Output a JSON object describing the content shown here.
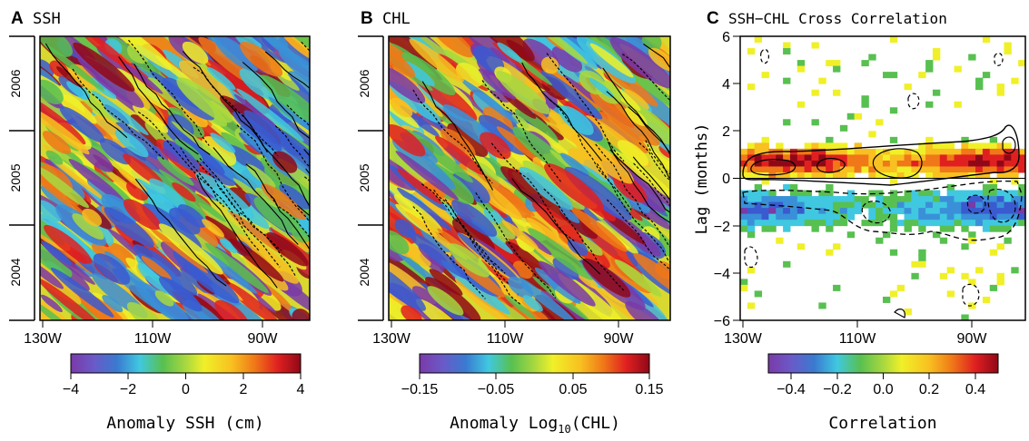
{
  "panels": [
    {
      "letter": "A",
      "title": "SSH",
      "x_ticks": [
        "130W",
        "110W",
        "90W"
      ],
      "year_labels": [
        "2006",
        "2005",
        "2004"
      ],
      "colorbar": {
        "ticks": [
          "−4",
          "−2",
          "0",
          "2",
          "4"
        ],
        "label": "Anomaly SSH (cm)"
      }
    },
    {
      "letter": "B",
      "title": "CHL",
      "x_ticks": [
        "130W",
        "110W",
        "90W"
      ],
      "year_labels": [
        "2006",
        "2005",
        "2004"
      ],
      "colorbar": {
        "ticks": [
          "−0.15",
          "−0.05",
          "0.05",
          "0.15"
        ],
        "label_pre": "Anomaly Log",
        "label_sub": "10",
        "label_post": "(CHL)"
      }
    },
    {
      "letter": "C",
      "title": "SSH−CHL Cross Correlation",
      "x_ticks": [
        "130W",
        "110W",
        "90W"
      ],
      "y_label": "Lag (months)",
      "y_ticks": [
        "6",
        "4",
        "2",
        "0",
        "−2",
        "−4",
        "−6"
      ],
      "colorbar": {
        "ticks": [
          "−0.4",
          "−0.2",
          "0.0",
          "0.2",
          "0.4"
        ],
        "label": "Correlation"
      }
    }
  ],
  "chart_data": [
    {
      "type": "heatmap",
      "title": "SSH",
      "x_axis": {
        "ticks": [
          "130W",
          "110W",
          "90W"
        ],
        "range": [
          130,
          79
        ]
      },
      "y_axis": {
        "ticks": [
          "2004",
          "2005",
          "2006"
        ]
      },
      "color_scale": {
        "range": [
          -4,
          4
        ],
        "unit": "cm",
        "label": "Anomaly SSH (cm)"
      },
      "pattern": "westward-propagating diagonal anomaly bands"
    },
    {
      "type": "heatmap",
      "title": "CHL",
      "x_axis": {
        "ticks": [
          "130W",
          "110W",
          "90W"
        ],
        "range": [
          130,
          79
        ]
      },
      "y_axis": {
        "ticks": [
          "2004",
          "2005",
          "2006"
        ]
      },
      "color_scale": {
        "range": [
          -0.15,
          0.15
        ],
        "label": "Anomaly Log10(CHL)"
      },
      "pattern": "westward-propagating diagonal anomaly bands"
    },
    {
      "type": "heatmap",
      "title": "SSH−CHL Cross Correlation",
      "x_axis": {
        "ticks": [
          "130W",
          "110W",
          "90W"
        ],
        "range": [
          130,
          79
        ]
      },
      "y_axis": {
        "label": "Lag (months)",
        "range": [
          -6,
          6
        ],
        "ticks": [
          6,
          4,
          2,
          0,
          -2,
          -4,
          -6
        ]
      },
      "color_scale": {
        "range": [
          -0.5,
          0.5
        ],
        "ticks": [
          -0.4,
          -0.2,
          0.0,
          0.2,
          0.4
        ],
        "label": "Correlation"
      },
      "features": [
        {
          "lag_range": [
            0,
            1.5
          ],
          "correlation": "positive, up to ~0.45"
        },
        {
          "lag_range": [
            -2,
            -0.5
          ],
          "correlation": "negative, down to ~-0.4"
        }
      ]
    }
  ]
}
